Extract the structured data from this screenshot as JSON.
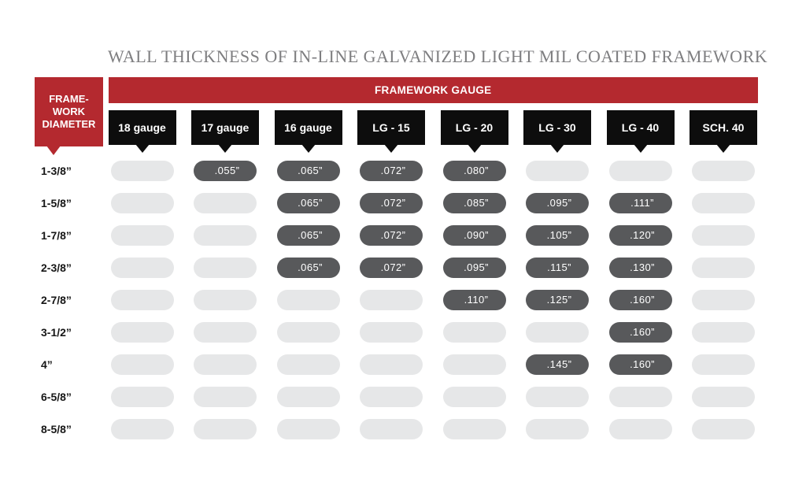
{
  "corner": {
    "lines": [
      "FRAME-",
      "WORK",
      "DIAMETER"
    ]
  },
  "colors": {
    "red": "#b4292f",
    "header_black": "#0d0d0d",
    "filled_pill": "#58595b",
    "empty_pill": "#e6e7e8",
    "title_gray": "#7e7e80"
  },
  "chart_data": {
    "type": "table",
    "title": "WALL THICKNESS OF IN-LINE GALVANIZED LIGHT MIL COATED FRAMEWORK",
    "row_header": "FRAME-WORK DIAMETER",
    "column_group_header": "FRAMEWORK GAUGE",
    "columns": [
      "18 gauge",
      "17 gauge",
      "16 gauge",
      "LG - 15",
      "LG - 20",
      "LG - 30",
      "LG - 40",
      "SCH. 40"
    ],
    "rows": [
      {
        "label": "1-3/8”",
        "values": [
          null,
          ".055”",
          ".065”",
          ".072”",
          ".080”",
          null,
          null,
          null
        ]
      },
      {
        "label": "1-5/8”",
        "values": [
          null,
          null,
          ".065”",
          ".072”",
          ".085”",
          ".095”",
          ".111”",
          null
        ]
      },
      {
        "label": "1-7/8”",
        "values": [
          null,
          null,
          ".065”",
          ".072”",
          ".090”",
          ".105”",
          ".120”",
          null
        ]
      },
      {
        "label": "2-3/8”",
        "values": [
          null,
          null,
          ".065”",
          ".072”",
          ".095”",
          ".115”",
          ".130”",
          null
        ]
      },
      {
        "label": "2-7/8”",
        "values": [
          null,
          null,
          null,
          null,
          ".110”",
          ".125”",
          ".160”",
          null
        ]
      },
      {
        "label": "3-1/2”",
        "values": [
          null,
          null,
          null,
          null,
          null,
          null,
          ".160”",
          null
        ]
      },
      {
        "label": "4”",
        "values": [
          null,
          null,
          null,
          null,
          null,
          ".145”",
          ".160”",
          null
        ]
      },
      {
        "label": "6-5/8”",
        "values": [
          null,
          null,
          null,
          null,
          null,
          null,
          null,
          null
        ]
      },
      {
        "label": "8-5/8”",
        "values": [
          null,
          null,
          null,
          null,
          null,
          null,
          null,
          null
        ]
      }
    ]
  }
}
